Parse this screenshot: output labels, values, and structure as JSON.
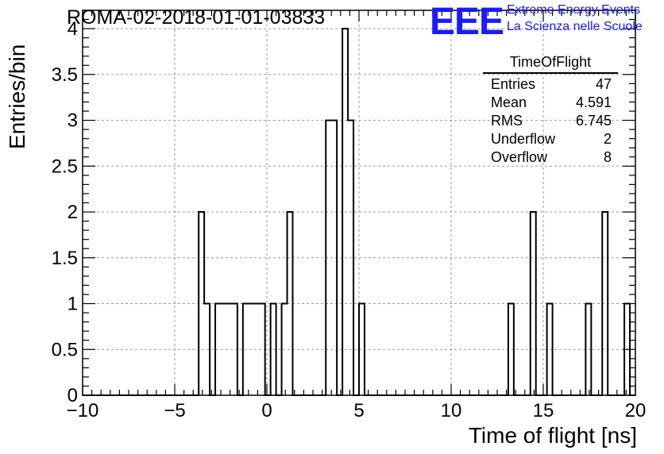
{
  "title": "ROMA-02-2018-01-01-03833",
  "logo": {
    "text": "EEE",
    "line1": "Extreme Energy Events",
    "line2": "La Scienza nelle Scuole",
    "color": "#1a1aff"
  },
  "stats": {
    "name": "TimeOfFlight",
    "rows": [
      {
        "label": "Entries",
        "value": "47"
      },
      {
        "label": "Mean",
        "value": "4.591"
      },
      {
        "label": "RMS",
        "value": "6.745"
      },
      {
        "label": "Underflow",
        "value": "2"
      },
      {
        "label": "Overflow",
        "value": "8"
      }
    ]
  },
  "chart_data": {
    "type": "bar",
    "histogram": true,
    "xlabel": "Time of flight [ns]",
    "ylabel": "Entries/bin",
    "xlim": [
      -10,
      20
    ],
    "ylim": [
      0,
      4.2
    ],
    "grid": true,
    "bin_width": 0.3,
    "x_ticks": [
      "−10",
      "−5",
      "0",
      "5",
      "10",
      "15",
      "20"
    ],
    "x_tick_values": [
      -10,
      -5,
      0,
      5,
      10,
      15,
      20
    ],
    "y_ticks": [
      "0",
      "0.5",
      "1",
      "1.5",
      "2",
      "2.5",
      "3",
      "3.5",
      "4"
    ],
    "y_tick_values": [
      0,
      0.5,
      1,
      1.5,
      2,
      2.5,
      3,
      3.5,
      4
    ],
    "bins": [
      {
        "x": -3.7,
        "count": 2
      },
      {
        "x": -3.4,
        "count": 1
      },
      {
        "x": -2.8,
        "count": 1
      },
      {
        "x": -2.5,
        "count": 1
      },
      {
        "x": -2.2,
        "count": 1
      },
      {
        "x": -1.9,
        "count": 1
      },
      {
        "x": -1.3,
        "count": 1
      },
      {
        "x": -1.0,
        "count": 1
      },
      {
        "x": -0.7,
        "count": 1
      },
      {
        "x": -0.4,
        "count": 1
      },
      {
        "x": 0.2,
        "count": 1
      },
      {
        "x": 0.8,
        "count": 1
      },
      {
        "x": 1.1,
        "count": 2
      },
      {
        "x": 3.2,
        "count": 3
      },
      {
        "x": 3.5,
        "count": 3
      },
      {
        "x": 4.1,
        "count": 4
      },
      {
        "x": 4.4,
        "count": 3
      },
      {
        "x": 5.0,
        "count": 1
      },
      {
        "x": 13.1,
        "count": 1
      },
      {
        "x": 14.3,
        "count": 2
      },
      {
        "x": 15.2,
        "count": 1
      },
      {
        "x": 17.3,
        "count": 1
      },
      {
        "x": 18.2,
        "count": 2
      },
      {
        "x": 19.4,
        "count": 1
      }
    ]
  }
}
